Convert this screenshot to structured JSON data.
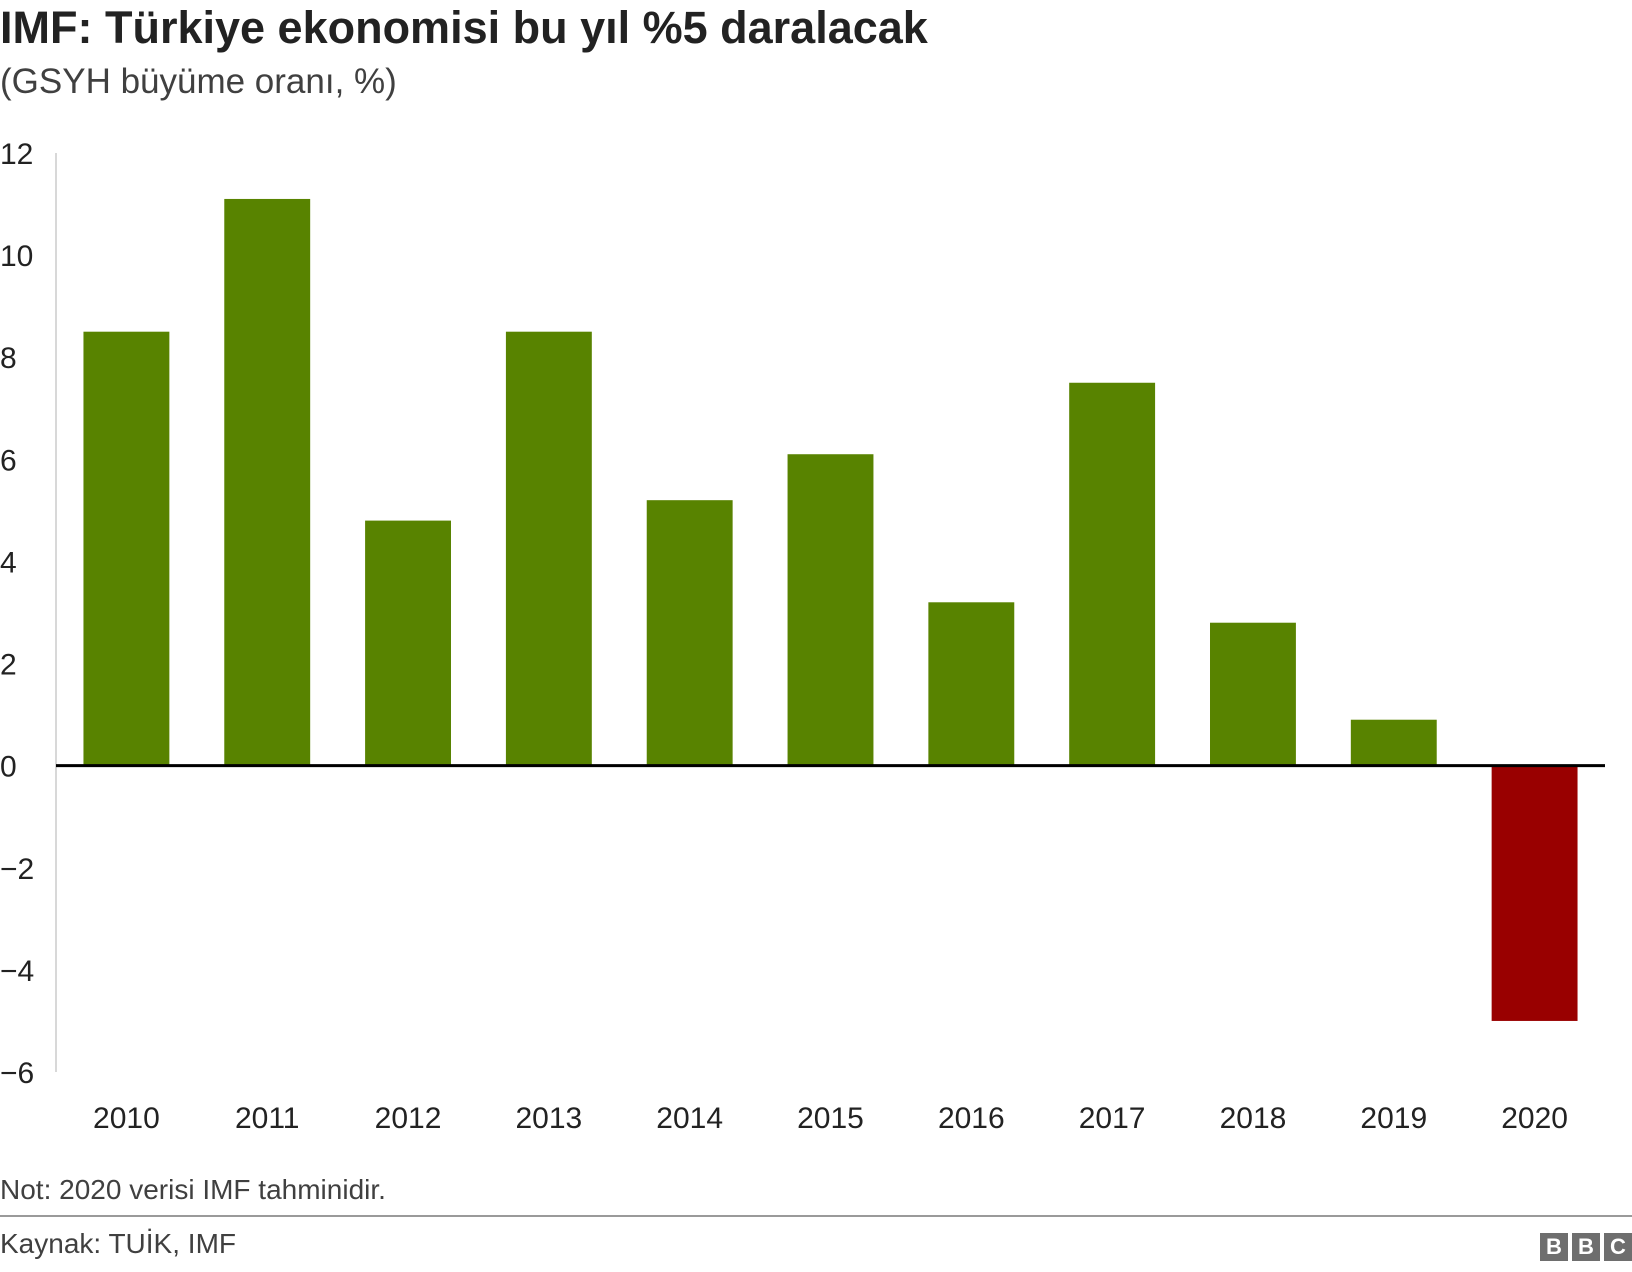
{
  "header": {
    "title": "IMF: Türkiye ekonomisi bu yıl %5 daralacak",
    "subtitle": "(GSYH büyüme oranı, %)"
  },
  "chart_data": {
    "type": "bar",
    "title": "IMF: Türkiye ekonomisi bu yıl %5 daralacak",
    "subtitle": "(GSYH büyüme oranı, %)",
    "categories": [
      "2010",
      "2011",
      "2012",
      "2013",
      "2014",
      "2015",
      "2016",
      "2017",
      "2018",
      "2019",
      "2020"
    ],
    "values": [
      8.5,
      11.1,
      4.8,
      8.5,
      5.2,
      6.1,
      3.2,
      7.5,
      2.8,
      0.9,
      -5.0
    ],
    "ylim": [
      -6,
      12
    ],
    "yticks": [
      12,
      10,
      8,
      6,
      4,
      2,
      0,
      -2,
      -4,
      -6
    ],
    "ytick_labels": [
      "12",
      "10",
      "8",
      "6",
      "4",
      "2",
      "0",
      "−2",
      "−4",
      "−6"
    ],
    "grid": false,
    "colors": {
      "positive": "#588300",
      "negative": "#990000",
      "zero_line": "#000000",
      "axis": "#cccccc"
    }
  },
  "footer": {
    "note": "Not: 2020 verisi IMF tahminidir.",
    "source": "Kaynak: TUİK, IMF",
    "logo_letters": [
      "B",
      "B",
      "C"
    ]
  }
}
